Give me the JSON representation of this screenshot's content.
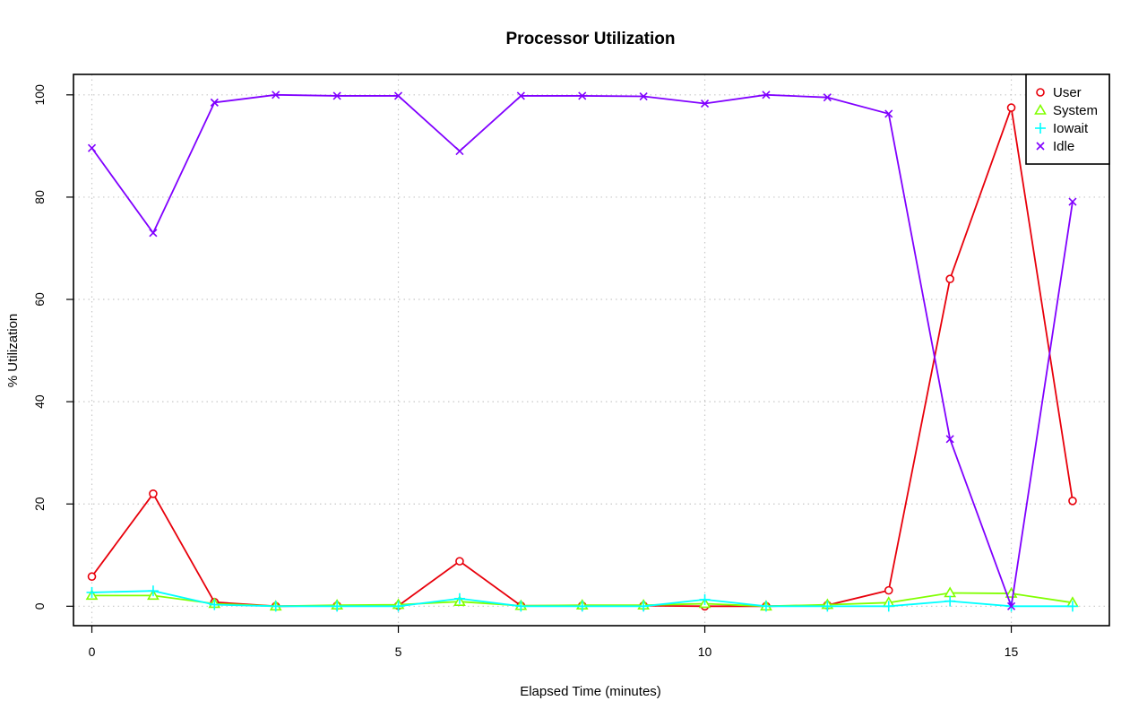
{
  "chart_data": {
    "type": "line",
    "title": "Processor Utilization",
    "xlabel": "Elapsed Time (minutes)",
    "ylabel": "% Utilization",
    "x": [
      0,
      1,
      2,
      3,
      4,
      5,
      6,
      7,
      8,
      9,
      10,
      11,
      12,
      13,
      14,
      15,
      16
    ],
    "xlim": [
      -0.3,
      16.6
    ],
    "ylim": [
      -3.8,
      104
    ],
    "x_ticks": [
      0,
      5,
      10,
      15
    ],
    "y_ticks": [
      0,
      20,
      40,
      60,
      80,
      100
    ],
    "grid": true,
    "legend_position": "top-right",
    "series": [
      {
        "name": "User",
        "color": "#e8000b",
        "marker": "circle",
        "values": [
          5.8,
          22.0,
          0.8,
          0.0,
          0.1,
          0.1,
          8.8,
          0.1,
          0.1,
          0.1,
          0.0,
          0.0,
          0.2,
          3.1,
          64.0,
          97.5,
          20.6
        ]
      },
      {
        "name": "System",
        "color": "#80ff00",
        "marker": "triangle",
        "values": [
          2.1,
          2.1,
          0.5,
          0.0,
          0.2,
          0.3,
          0.9,
          0.1,
          0.2,
          0.2,
          0.5,
          0.0,
          0.3,
          0.7,
          2.6,
          2.5,
          0.7
        ]
      },
      {
        "name": "Iowait",
        "color": "#00ffff",
        "marker": "plus",
        "values": [
          2.7,
          3.0,
          0.3,
          0.0,
          0.0,
          0.0,
          1.5,
          0.0,
          0.0,
          0.0,
          1.3,
          0.0,
          0.0,
          0.0,
          1.0,
          0.0,
          0.0
        ]
      },
      {
        "name": "Idle",
        "color": "#8000ff",
        "marker": "cross",
        "values": [
          89.6,
          73.0,
          98.5,
          100.0,
          99.8,
          99.8,
          89.0,
          99.8,
          99.8,
          99.7,
          98.3,
          100.0,
          99.5,
          96.3,
          32.7,
          0.0,
          79.1
        ]
      }
    ]
  }
}
